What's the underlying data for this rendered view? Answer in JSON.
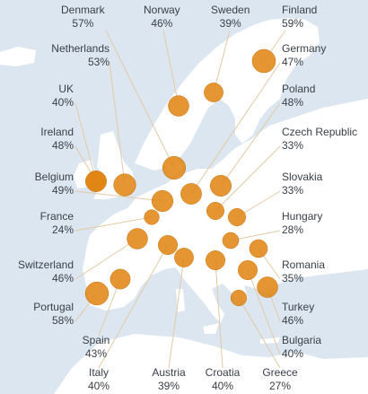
{
  "colors": {
    "sea": "#dce6f0",
    "land": "#ffffff",
    "leader": "#e3c9a3",
    "bubble": "#e0840f",
    "bubble_outline": "#c56d05",
    "text": "#3a4047"
  },
  "legend_note": "bubble size proportional to percentage",
  "countries": [
    {
      "id": "denmark",
      "name": "Denmark",
      "value": 57
    },
    {
      "id": "norway",
      "name": "Norway",
      "value": 46
    },
    {
      "id": "sweden",
      "name": "Sweden",
      "value": 39
    },
    {
      "id": "finland",
      "name": "Finland",
      "value": 59
    },
    {
      "id": "netherlands",
      "name": "Netherlands",
      "value": 53
    },
    {
      "id": "germany",
      "name": "Germany",
      "value": 47
    },
    {
      "id": "uk",
      "name": "UK",
      "value": 40
    },
    {
      "id": "poland",
      "name": "Poland",
      "value": 48
    },
    {
      "id": "ireland",
      "name": "Ireland",
      "value": 48
    },
    {
      "id": "czech",
      "name": "Czech Republic",
      "value": 33
    },
    {
      "id": "belgium",
      "name": "Belgium",
      "value": 49
    },
    {
      "id": "slovakia",
      "name": "Slovakia",
      "value": 33
    },
    {
      "id": "france",
      "name": "France",
      "value": 24
    },
    {
      "id": "hungary",
      "name": "Hungary",
      "value": 28
    },
    {
      "id": "switzerland",
      "name": "Switzerland",
      "value": 46
    },
    {
      "id": "romania",
      "name": "Romania",
      "value": 35
    },
    {
      "id": "portugal",
      "name": "Portugal",
      "value": 58
    },
    {
      "id": "turkey",
      "name": "Turkey",
      "value": 46
    },
    {
      "id": "spain",
      "name": "Spain",
      "value": 43
    },
    {
      "id": "bulgaria",
      "name": "Bulgaria",
      "value": 40
    },
    {
      "id": "italy",
      "name": "Italy",
      "value": 40
    },
    {
      "id": "austria",
      "name": "Austria",
      "value": 39
    },
    {
      "id": "croatia",
      "name": "Croatia",
      "value": 40
    },
    {
      "id": "greece",
      "name": "Greece",
      "value": 27
    }
  ]
}
